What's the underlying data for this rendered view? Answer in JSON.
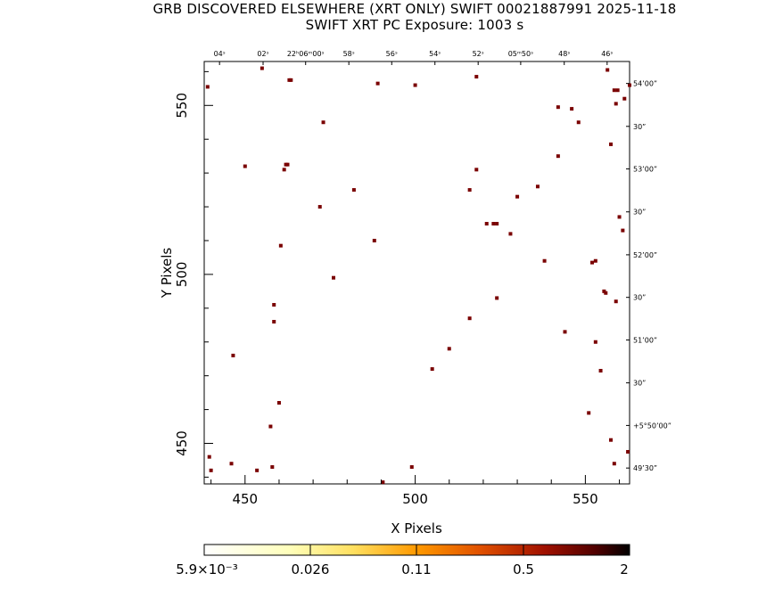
{
  "header": {
    "line1": "GRB DISCOVERED ELSEWHERE (XRT ONLY) SWIFT 00021887991 2025-11-18",
    "line2": "SWIFT XRT PC Exposure:       1003 s"
  },
  "chart_data": {
    "type": "scatter",
    "title": "GRB DISCOVERED ELSEWHERE (XRT ONLY) SWIFT 00021887991 2025-11-18",
    "subtitle": "SWIFT XRT PC Exposure:       1003 s",
    "xlabel": "X Pixels",
    "ylabel": "Y Pixels",
    "xlim": [
      438,
      563
    ],
    "ylim": [
      438,
      563
    ],
    "xticks": [
      450,
      500,
      550
    ],
    "yticks": [
      450,
      500,
      550
    ],
    "xtick_labels": [
      "450",
      "500",
      "550"
    ],
    "ytick_labels": [
      "450",
      "500",
      "550"
    ],
    "ra_labels": [
      {
        "x": 442.5,
        "text": "04ˢ"
      },
      {
        "x": 455.3,
        "text": "02ˢ"
      },
      {
        "x": 467.8,
        "text": "22ʰ06ᵐ00ˢ"
      },
      {
        "x": 480.5,
        "text": "58ˢ"
      },
      {
        "x": 493.1,
        "text": "56ˢ"
      },
      {
        "x": 505.8,
        "text": "54ˢ"
      },
      {
        "x": 518.5,
        "text": "52ˢ"
      },
      {
        "x": 531.0,
        "text": "05ᵐ50ˢ"
      },
      {
        "x": 543.8,
        "text": "48ˢ"
      },
      {
        "x": 556.4,
        "text": "46ˢ"
      }
    ],
    "dec_labels": [
      {
        "y": 556.5,
        "text": "54’00”"
      },
      {
        "y": 543.8,
        "text": "30”"
      },
      {
        "y": 531.2,
        "text": "53’00”"
      },
      {
        "y": 518.5,
        "text": "30”"
      },
      {
        "y": 505.8,
        "text": "52’00”"
      },
      {
        "y": 493.2,
        "text": "30”"
      },
      {
        "y": 480.6,
        "text": "51’00”"
      },
      {
        "y": 467.9,
        "text": "30”"
      },
      {
        "y": 455.3,
        "text": "+5°50’00”"
      },
      {
        "y": 442.7,
        "text": "49’30”"
      }
    ],
    "series": [
      {
        "points": [
          [
            439,
            555.5
          ],
          [
            439.5,
            446
          ],
          [
            455,
            561
          ],
          [
            463.5,
            557.5
          ],
          [
            463,
            557.5
          ],
          [
            489,
            556.5
          ],
          [
            500,
            556
          ],
          [
            518,
            558.5
          ],
          [
            542,
            549.5
          ],
          [
            558.5,
            554.5
          ],
          [
            559.5,
            554.5
          ],
          [
            561.5,
            552
          ],
          [
            563,
            556
          ],
          [
            559,
            550.5
          ],
          [
            546,
            549
          ],
          [
            556.5,
            560.5
          ],
          [
            548,
            545
          ],
          [
            473,
            545
          ],
          [
            557.5,
            538.5
          ],
          [
            450,
            532
          ],
          [
            461.5,
            531
          ],
          [
            462,
            532.5
          ],
          [
            462.5,
            532.5
          ],
          [
            518,
            531
          ],
          [
            542,
            535
          ],
          [
            536,
            526
          ],
          [
            516,
            525
          ],
          [
            482,
            525
          ],
          [
            530,
            523
          ],
          [
            472,
            520
          ],
          [
            560,
            517
          ],
          [
            521,
            515
          ],
          [
            523,
            515
          ],
          [
            524,
            515
          ],
          [
            561,
            513
          ],
          [
            528,
            512
          ],
          [
            488,
            510
          ],
          [
            460.5,
            508.5
          ],
          [
            538,
            504
          ],
          [
            553,
            504
          ],
          [
            552,
            503.5
          ],
          [
            476,
            499
          ],
          [
            555.5,
            495
          ],
          [
            556,
            494.5
          ],
          [
            524,
            493
          ],
          [
            559,
            492
          ],
          [
            458.5,
            491
          ],
          [
            458.5,
            486
          ],
          [
            516,
            487
          ],
          [
            544,
            483
          ],
          [
            553,
            480
          ],
          [
            446.5,
            476
          ],
          [
            510,
            478
          ],
          [
            505,
            472
          ],
          [
            554.5,
            471.5
          ],
          [
            460,
            462
          ],
          [
            551,
            459
          ],
          [
            457.5,
            455
          ],
          [
            557.5,
            451
          ],
          [
            562.5,
            447.5
          ],
          [
            446,
            444
          ],
          [
            558.5,
            444
          ],
          [
            453.5,
            442
          ],
          [
            458,
            443
          ],
          [
            499,
            443
          ],
          [
            490.5,
            438.5
          ],
          [
            440,
            442
          ]
        ]
      }
    ],
    "colorbar": {
      "tick_labels": [
        "5.9×10⁻³",
        "0.026",
        "0.11",
        "0.5",
        "2"
      ],
      "colors": [
        "#ffffff",
        "#ffff99",
        "#ffcc33",
        "#ff8800",
        "#cc3300",
        "#660000",
        "#000000"
      ]
    },
    "point_color": "#7a0000"
  }
}
